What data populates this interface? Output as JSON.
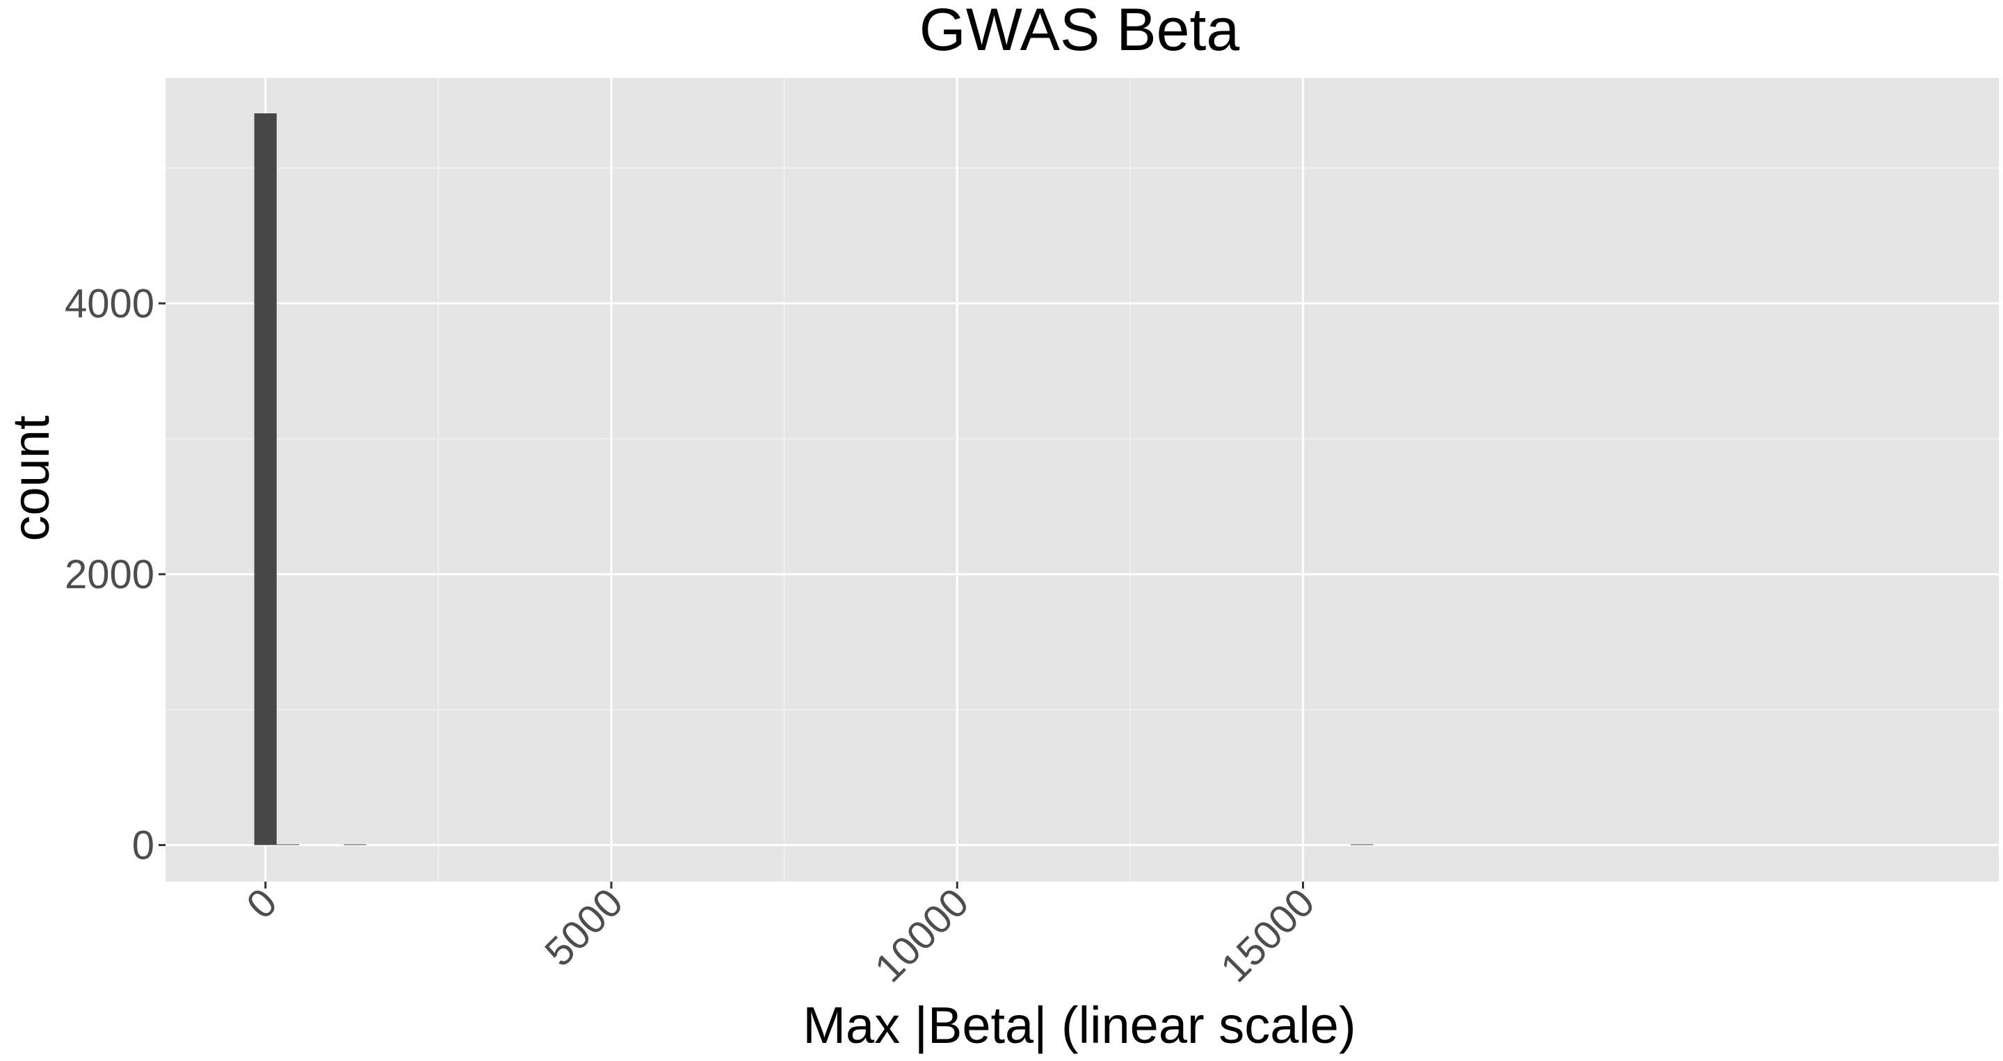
{
  "chart_data": {
    "type": "bar",
    "title": "GWAS Beta",
    "xlabel": "Max |Beta| (linear scale)",
    "ylabel": "count",
    "xlim": [
      -1445,
      25060
    ],
    "ylim": [
      -270,
      5665
    ],
    "x_ticks": [
      0,
      5000,
      10000,
      15000
    ],
    "x_minor": [
      2500,
      7500,
      12500
    ],
    "y_ticks": [
      0,
      2000,
      4000
    ],
    "y_minor": [
      1000,
      3000,
      5000
    ],
    "bin_width": 323.5,
    "bins": [
      {
        "x": 0,
        "count": 5403
      },
      {
        "x": 323.5,
        "count": 2
      },
      {
        "x": 1294,
        "count": 1
      },
      {
        "x": 15853,
        "count": 1
      }
    ],
    "grid": true,
    "colors": {
      "panel_background": "#e5e5e5",
      "grid_major": "#ffffff",
      "grid_minor": "#f2f2f2",
      "bar_fill": "#474747",
      "tick_label": "#4d4d4d",
      "tick_mark": "#333333"
    }
  }
}
